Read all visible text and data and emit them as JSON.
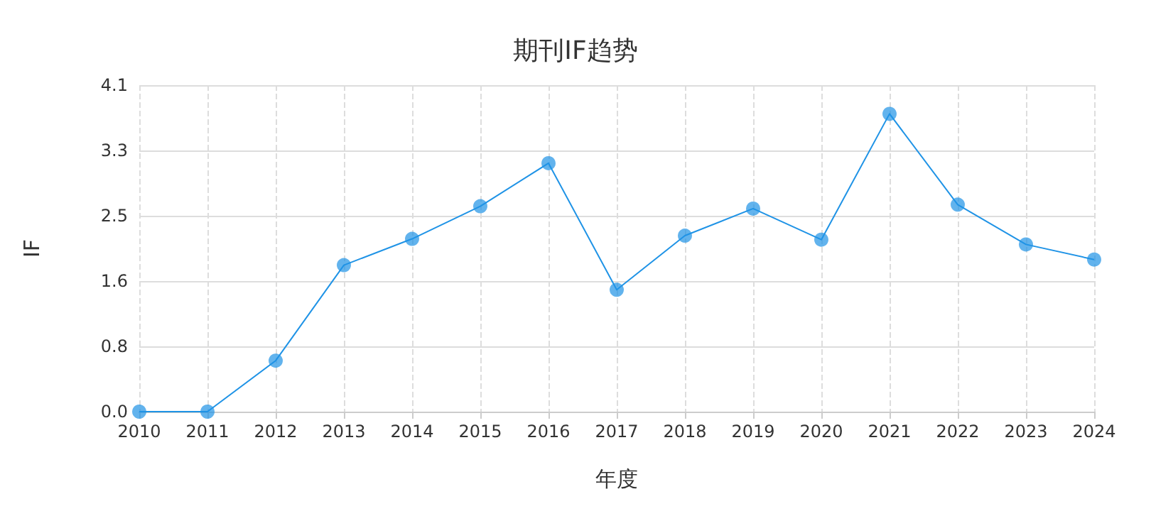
{
  "chart_data": {
    "type": "line",
    "title": "期刊IF趋势",
    "xlabel": "年度",
    "ylabel": "IF",
    "categories": [
      "2010",
      "2011",
      "2012",
      "2013",
      "2014",
      "2015",
      "2016",
      "2017",
      "2018",
      "2019",
      "2020",
      "2021",
      "2022",
      "2023",
      "2024"
    ],
    "series": [
      {
        "color": "#1f93e6",
        "values": [
          0,
          0,
          0.64,
          1.84,
          2.17,
          2.58,
          3.12,
          1.53,
          2.21,
          2.55,
          2.16,
          3.74,
          2.6,
          2.1,
          1.91
        ]
      }
    ],
    "ylim": [
      0,
      4.1
    ],
    "yticks": [
      {
        "value": 0,
        "label": "0.0"
      },
      {
        "value": 0.82,
        "label": "0.8"
      },
      {
        "value": 1.64,
        "label": "1.6"
      },
      {
        "value": 2.46,
        "label": "2.5"
      },
      {
        "value": 3.28,
        "label": "3.3"
      },
      {
        "value": 4.1,
        "label": "4.1"
      }
    ],
    "grid": true,
    "marker": "circle",
    "line_style": "solid"
  }
}
